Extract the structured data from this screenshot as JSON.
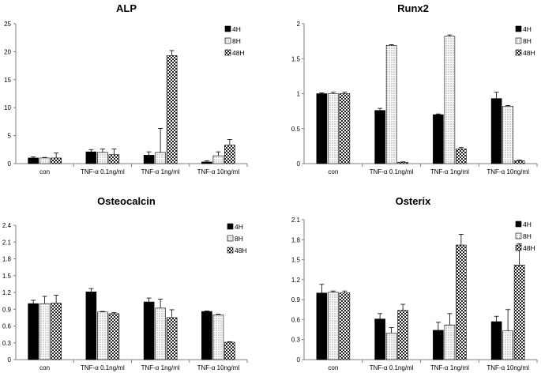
{
  "colors": {
    "series_4h": "#000000",
    "series_8h": "#ffffff",
    "series_48h": "#ffffff",
    "axis": "#7f7f7f",
    "text": "#000000"
  },
  "patterns": {
    "8H": "dots",
    "48H": "checker"
  },
  "chart_data": [
    {
      "type": "bar",
      "title": "ALP",
      "categories": [
        "con",
        "TNF-α 0.1ng/ml",
        "TNF-α 1ng/ml",
        "TNF-α 10ng/ml"
      ],
      "ylim": [
        0,
        25
      ],
      "yticks": [
        "0",
        "5",
        "10",
        "15",
        "20",
        "25"
      ],
      "legend": {
        "position": "top-right",
        "labels": [
          "4H",
          "8H",
          "48H"
        ]
      },
      "grid": false,
      "series": [
        {
          "name": "4H",
          "values": [
            1.0,
            2.1,
            1.5,
            0.3
          ],
          "errors": [
            0.2,
            0.4,
            0.6,
            0.2
          ]
        },
        {
          "name": "8H",
          "values": [
            1.0,
            2.0,
            2.0,
            1.4
          ],
          "errors": [
            0.1,
            0.6,
            4.3,
            0.7
          ]
        },
        {
          "name": "48H",
          "values": [
            1.0,
            1.6,
            19.3,
            3.3
          ],
          "errors": [
            0.9,
            1.0,
            0.9,
            1.0
          ]
        }
      ]
    },
    {
      "type": "bar",
      "title": "Runx2",
      "categories": [
        "con",
        "TNF-α 0.1ng/ml",
        "TNF-α 1ng/ml",
        "TNF-α 10ng/ml"
      ],
      "ylim": [
        0,
        2
      ],
      "yticks": [
        "0",
        "0.5",
        "1",
        "1.5",
        "2"
      ],
      "legend": {
        "position": "top-right",
        "labels": [
          "4H",
          "8H",
          "48H"
        ]
      },
      "grid": false,
      "series": [
        {
          "name": "4H",
          "values": [
            1.0,
            0.76,
            0.7,
            0.93
          ],
          "errors": [
            0.01,
            0.03,
            0.01,
            0.09
          ]
        },
        {
          "name": "8H",
          "values": [
            1.0,
            1.69,
            1.82,
            0.82
          ],
          "errors": [
            0.02,
            0.01,
            0.02,
            0.01
          ]
        },
        {
          "name": "48H",
          "values": [
            1.0,
            0.02,
            0.21,
            0.04
          ],
          "errors": [
            0.02,
            0.005,
            0.02,
            0.01
          ]
        }
      ]
    },
    {
      "type": "bar",
      "title": "Osteocalcin",
      "categories": [
        "con",
        "TNF-α 0.1ng/ml",
        "TNF-α 1ng/ml",
        "TNF-α 10ng/ml"
      ],
      "ylim": [
        0,
        2.4
      ],
      "yticks": [
        "0",
        "0.3",
        "0.6",
        "0.9",
        "1.2",
        "1.5",
        "1.8",
        "2.1",
        "2.4"
      ],
      "legend": {
        "position": "top-right",
        "labels": [
          "4H",
          "8H",
          "48H"
        ]
      },
      "grid": false,
      "series": [
        {
          "name": "4H",
          "values": [
            1.0,
            1.21,
            1.03,
            0.86
          ],
          "errors": [
            0.06,
            0.06,
            0.07,
            0.01
          ]
        },
        {
          "name": "8H",
          "values": [
            1.0,
            0.85,
            0.92,
            0.8
          ],
          "errors": [
            0.13,
            0.01,
            0.16,
            0.01
          ]
        },
        {
          "name": "48H",
          "values": [
            1.01,
            0.82,
            0.75,
            0.31
          ],
          "errors": [
            0.14,
            0.02,
            0.14,
            0.01
          ]
        }
      ]
    },
    {
      "type": "bar",
      "title": "Osterix",
      "categories": [
        "con",
        "TNF-α 0.1ng/ml",
        "TNF-α 1ng/ml",
        "TNF-α 10ng/ml"
      ],
      "ylim": [
        0,
        2.1
      ],
      "yticks": [
        "0",
        "0.3",
        "0.6",
        "0.9",
        "1.2",
        "1.5",
        "1.8",
        "2.1"
      ],
      "legend": {
        "position": "top-right",
        "labels": [
          "4H",
          "8H",
          "48H"
        ]
      },
      "grid": false,
      "series": [
        {
          "name": "4H",
          "values": [
            1.0,
            0.61,
            0.44,
            0.57
          ],
          "errors": [
            0.13,
            0.08,
            0.12,
            0.08
          ]
        },
        {
          "name": "8H",
          "values": [
            1.01,
            0.4,
            0.52,
            0.43
          ],
          "errors": [
            0.02,
            0.08,
            0.17,
            0.32
          ]
        },
        {
          "name": "48H",
          "values": [
            1.0,
            0.74,
            1.72,
            1.42
          ],
          "errors": [
            0.03,
            0.09,
            0.16,
            0.32
          ]
        }
      ]
    }
  ]
}
